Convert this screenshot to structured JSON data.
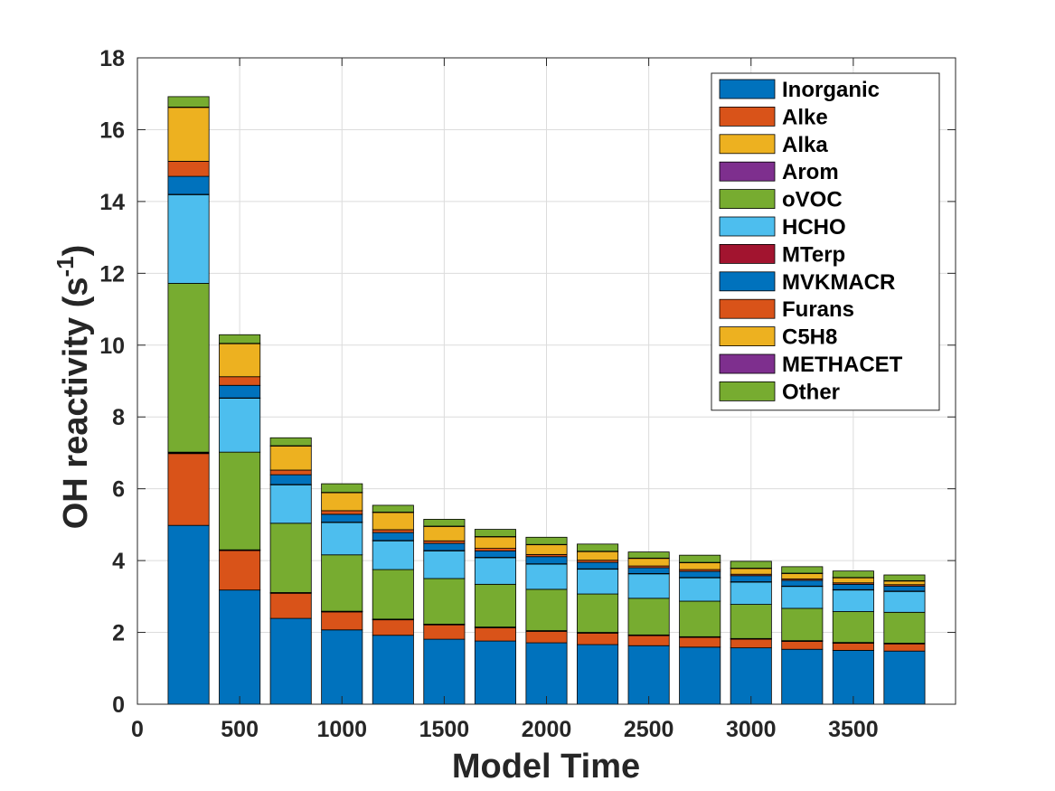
{
  "chart_data": {
    "type": "bar",
    "stacked": true,
    "xlabel": "Model Time",
    "ylabel": "OH reactivity (s",
    "ylabel_superscript": "-1",
    "ylabel_suffix": ")",
    "xlim": [
      0,
      4000
    ],
    "ylim": [
      0,
      18
    ],
    "grid": true,
    "legend_position": "top-right",
    "x_ticks": [
      0,
      500,
      1000,
      1500,
      2000,
      2500,
      3000,
      3500
    ],
    "y_ticks": [
      0,
      2,
      4,
      6,
      8,
      10,
      12,
      14,
      16,
      18
    ],
    "x": [
      250,
      500,
      750,
      1000,
      1250,
      1500,
      1750,
      2000,
      2250,
      2500,
      2750,
      3000,
      3250,
      3500,
      3750
    ],
    "series": [
      {
        "name": "Inorganic",
        "color": "#0072BD",
        "values": [
          4.98,
          3.18,
          2.39,
          2.07,
          1.92,
          1.81,
          1.76,
          1.71,
          1.66,
          1.63,
          1.59,
          1.57,
          1.53,
          1.5,
          1.48
        ]
      },
      {
        "name": "Alke",
        "color": "#D95319",
        "values": [
          2.0,
          1.1,
          0.7,
          0.5,
          0.43,
          0.4,
          0.37,
          0.32,
          0.32,
          0.28,
          0.27,
          0.24,
          0.22,
          0.2,
          0.2
        ]
      },
      {
        "name": "Alka",
        "color": "#EDB120",
        "values": [
          0.02,
          0.01,
          0.01,
          0.01,
          0.01,
          0.01,
          0.01,
          0.01,
          0.01,
          0.01,
          0.01,
          0.01,
          0.01,
          0.01,
          0.01
        ]
      },
      {
        "name": "Arom",
        "color": "#7E2F8E",
        "values": [
          0.02,
          0.01,
          0.01,
          0.01,
          0.01,
          0.01,
          0.01,
          0.01,
          0.01,
          0.01,
          0.01,
          0.01,
          0.01,
          0.01,
          0.01
        ]
      },
      {
        "name": "oVOC",
        "color": "#77AC30",
        "values": [
          4.7,
          2.72,
          1.93,
          1.57,
          1.38,
          1.27,
          1.19,
          1.15,
          1.07,
          1.02,
          0.99,
          0.95,
          0.9,
          0.86,
          0.86
        ]
      },
      {
        "name": "HCHO",
        "color": "#4DBEEE",
        "values": [
          2.47,
          1.5,
          1.07,
          0.9,
          0.8,
          0.77,
          0.74,
          0.7,
          0.69,
          0.68,
          0.65,
          0.62,
          0.61,
          0.6,
          0.58
        ]
      },
      {
        "name": "MTerp",
        "color": "#A2142F",
        "values": [
          0.01,
          0.01,
          0.01,
          0.01,
          0.01,
          0.01,
          0.01,
          0.01,
          0.01,
          0.01,
          0.01,
          0.01,
          0.01,
          0.01,
          0.01
        ]
      },
      {
        "name": "MVKMACR",
        "color": "#0072BD",
        "values": [
          0.5,
          0.35,
          0.27,
          0.22,
          0.22,
          0.2,
          0.18,
          0.2,
          0.18,
          0.16,
          0.17,
          0.17,
          0.16,
          0.15,
          0.14
        ]
      },
      {
        "name": "Furans",
        "color": "#D95319",
        "values": [
          0.42,
          0.24,
          0.13,
          0.1,
          0.08,
          0.07,
          0.07,
          0.06,
          0.06,
          0.05,
          0.05,
          0.04,
          0.04,
          0.04,
          0.04
        ]
      },
      {
        "name": "C5H8",
        "color": "#EDB120",
        "values": [
          1.5,
          0.92,
          0.67,
          0.5,
          0.48,
          0.4,
          0.32,
          0.27,
          0.24,
          0.21,
          0.19,
          0.16,
          0.15,
          0.14,
          0.1
        ]
      },
      {
        "name": "METHACET",
        "color": "#7E2F8E",
        "values": [
          0.01,
          0.01,
          0.01,
          0.01,
          0.01,
          0.01,
          0.01,
          0.01,
          0.01,
          0.01,
          0.01,
          0.01,
          0.01,
          0.01,
          0.01
        ]
      },
      {
        "name": "Other",
        "color": "#77AC30",
        "values": [
          0.29,
          0.24,
          0.22,
          0.24,
          0.19,
          0.19,
          0.2,
          0.2,
          0.2,
          0.17,
          0.2,
          0.19,
          0.18,
          0.18,
          0.16
        ]
      }
    ]
  }
}
